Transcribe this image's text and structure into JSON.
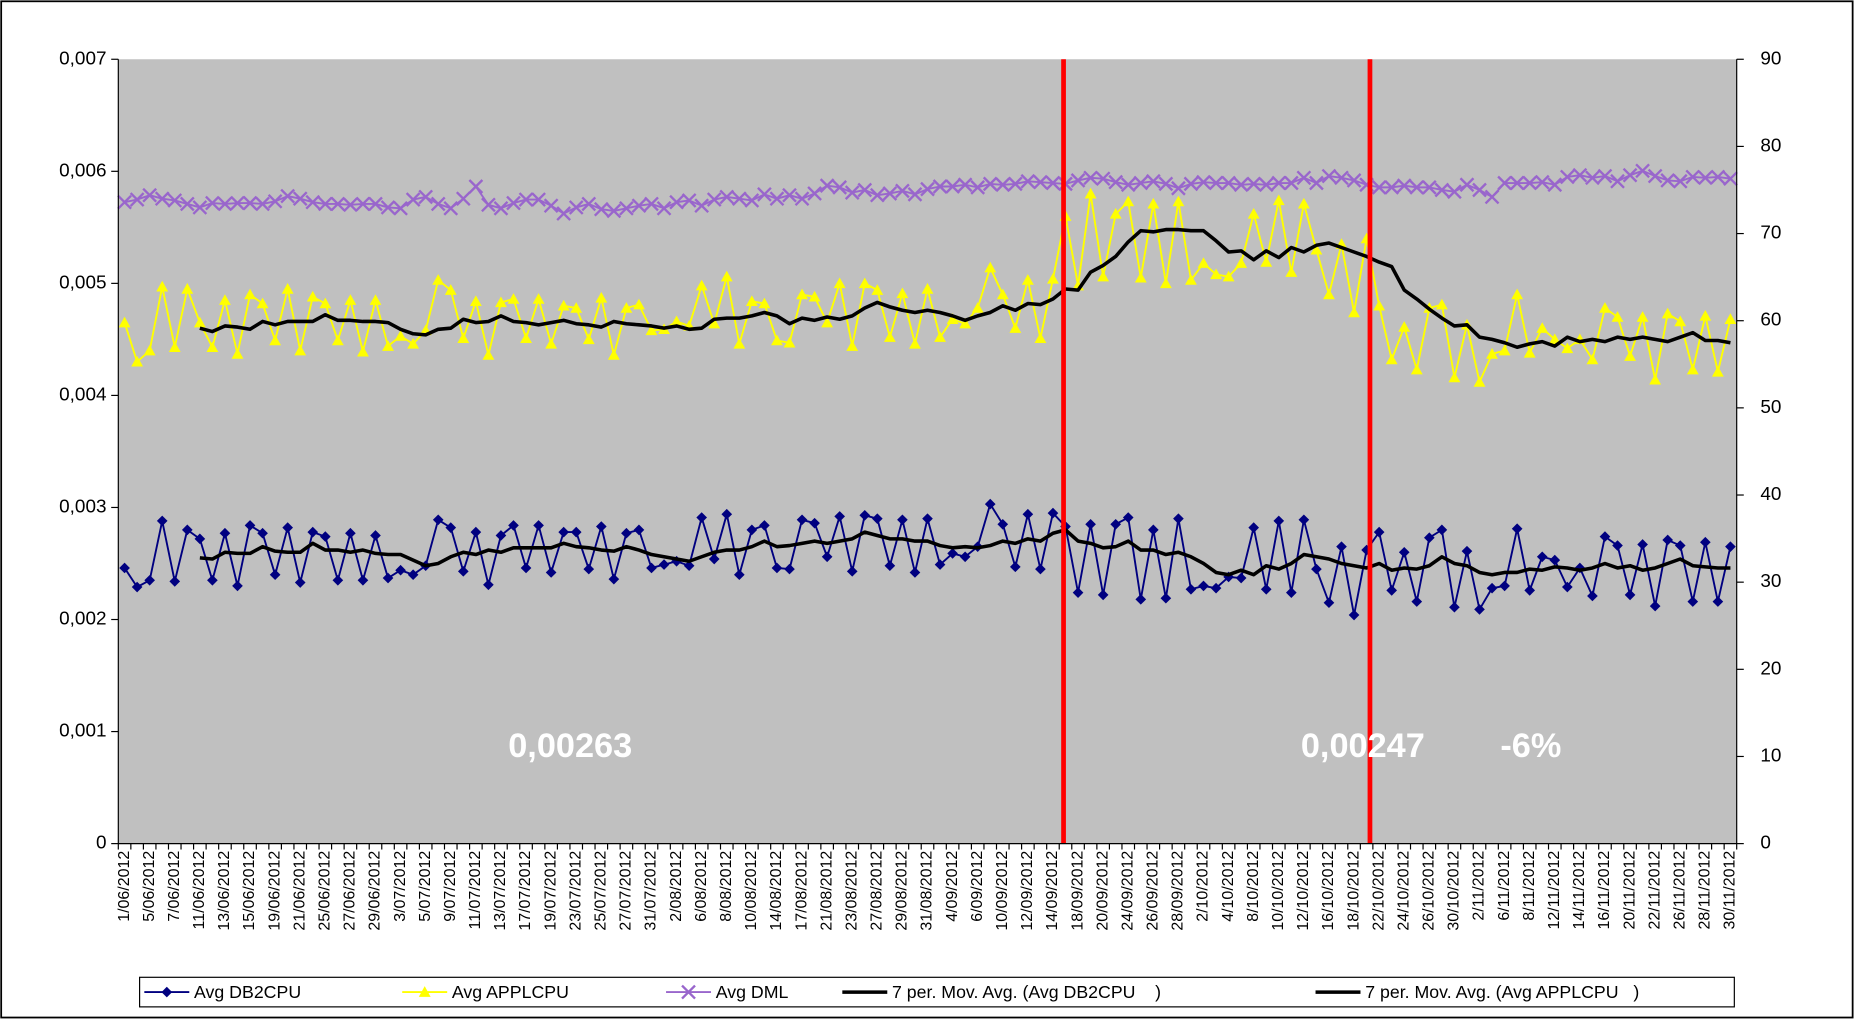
{
  "chart_data": {
    "type": "line",
    "categories": [
      "1/06/2012",
      null,
      "5/06/2012",
      null,
      "7/06/2012",
      null,
      "11/06/2012",
      null,
      "13/06/2012",
      null,
      "15/06/2012",
      null,
      "19/06/2012",
      null,
      "21/06/2012",
      null,
      "25/06/2012",
      null,
      "27/06/2012",
      null,
      "29/06/2012",
      null,
      "3/07/2012",
      null,
      "5/07/2012",
      null,
      "9/07/2012",
      null,
      "11/07/2012",
      null,
      "13/07/2012",
      null,
      "17/07/2012",
      null,
      "19/07/2012",
      null,
      "23/07/2012",
      null,
      "25/07/2012",
      null,
      "27/07/2012",
      null,
      "31/07/2012",
      null,
      "2/08/2012",
      null,
      "6/08/2012",
      null,
      "8/08/2012",
      null,
      "10/08/2012",
      null,
      "14/08/2012",
      null,
      "17/08/2012",
      null,
      "21/08/2012",
      null,
      "23/08/2012",
      null,
      "27/08/2012",
      null,
      "29/08/2012",
      null,
      "31/08/2012",
      null,
      "4/09/2012",
      null,
      "6/09/2012",
      null,
      "10/09/2012",
      null,
      "12/09/2012",
      null,
      "14/09/2012",
      null,
      "18/09/2012",
      null,
      "20/09/2012",
      null,
      "24/09/2012",
      null,
      "26/09/2012",
      null,
      "28/09/2012",
      null,
      "2/10/2012",
      null,
      "4/10/2012",
      null,
      "8/10/2012",
      null,
      "10/10/2012",
      null,
      "12/10/2012",
      null,
      "16/10/2012",
      null,
      "18/10/2012",
      null,
      "22/10/2012",
      null,
      "24/10/2012",
      null,
      "26/10/2012",
      null,
      "30/10/2012",
      null,
      "2/11/2012",
      null,
      "6/11/2012",
      null,
      "8/11/2012",
      null,
      "12/11/2012",
      null,
      "14/11/2012",
      null,
      "16/11/2012",
      null,
      "20/11/2012",
      null,
      "22/11/2012",
      null,
      "26/11/2012",
      null,
      "28/11/2012",
      null,
      "30/11/2012"
    ],
    "series": [
      {
        "name": "Avg DB2CPU",
        "color": "#000080",
        "marker": "diamond",
        "values": [
          0.00246,
          0.00229,
          0.00235,
          0.00288,
          0.00234,
          0.0028,
          0.00272,
          0.00235,
          0.00277,
          0.0023,
          0.00284,
          0.00277,
          0.0024,
          0.00282,
          0.00233,
          0.00278,
          0.00274,
          0.00235,
          0.00277,
          0.00235,
          0.00275,
          0.00237,
          0.00244,
          0.0024,
          0.00248,
          0.00289,
          0.00282,
          0.00243,
          0.00278,
          0.00231,
          0.00275,
          0.00284,
          0.00246,
          0.00284,
          0.00242,
          0.00278,
          0.00278,
          0.00245,
          0.00283,
          0.00236,
          0.00277,
          0.0028,
          0.00246,
          0.00249,
          0.00252,
          0.00248,
          0.00291,
          0.00254,
          0.00294,
          0.0024,
          0.0028,
          0.00284,
          0.00246,
          0.00245,
          0.00289,
          0.00286,
          0.00256,
          0.00292,
          0.00243,
          0.00293,
          0.0029,
          0.00248,
          0.00289,
          0.00242,
          0.0029,
          0.00249,
          0.00259,
          0.00256,
          0.00265,
          0.00303,
          0.00285,
          0.00247,
          0.00294,
          0.00245,
          0.00295,
          0.00283,
          0.00224,
          0.00285,
          0.00222,
          0.00285,
          0.00291,
          0.00218,
          0.0028,
          0.00219,
          0.0029,
          0.00227,
          0.0023,
          0.00228,
          0.00238,
          0.00237,
          0.00282,
          0.00227,
          0.00288,
          0.00224,
          0.00289,
          0.00245,
          0.00215,
          0.00265,
          0.00204,
          0.00262,
          0.00278,
          0.00226,
          0.0026,
          0.00216,
          0.00273,
          0.0028,
          0.00211,
          0.00261,
          0.00209,
          0.00228,
          0.0023,
          0.00281,
          0.00226,
          0.00256,
          0.00253,
          0.00229,
          0.00246,
          0.00221,
          0.00274,
          0.00266,
          0.00222,
          0.00267,
          0.00212,
          0.00271,
          0.00266,
          0.00216,
          0.00269,
          0.00216,
          0.00265
        ]
      },
      {
        "name": "Avg APPLCPU",
        "color": "#ffff00",
        "marker": "triangle",
        "values": [
          0.00465,
          0.0043,
          0.0044,
          0.00497,
          0.00443,
          0.00495,
          0.00465,
          0.00443,
          0.00485,
          0.00437,
          0.0049,
          0.00482,
          0.00449,
          0.00495,
          0.0044,
          0.00488,
          0.00482,
          0.00449,
          0.00485,
          0.00439,
          0.00485,
          0.00444,
          0.00453,
          0.00446,
          0.00458,
          0.00503,
          0.00494,
          0.00451,
          0.00484,
          0.00436,
          0.00483,
          0.00486,
          0.00451,
          0.00486,
          0.00446,
          0.0048,
          0.00478,
          0.0045,
          0.00487,
          0.00436,
          0.00478,
          0.00481,
          0.00458,
          0.00459,
          0.00466,
          0.00462,
          0.00498,
          0.00464,
          0.00506,
          0.00446,
          0.00484,
          0.00482,
          0.00449,
          0.00447,
          0.0049,
          0.00488,
          0.00465,
          0.005,
          0.00444,
          0.005,
          0.00494,
          0.00452,
          0.00491,
          0.00446,
          0.00495,
          0.00452,
          0.00468,
          0.00464,
          0.00478,
          0.00514,
          0.0049,
          0.0046,
          0.00503,
          0.00451,
          0.00504,
          0.0056,
          0.00498,
          0.0058,
          0.00506,
          0.00562,
          0.00573,
          0.00505,
          0.00571,
          0.005,
          0.00573,
          0.00503,
          0.00518,
          0.00508,
          0.00506,
          0.00518,
          0.00562,
          0.00519,
          0.00574,
          0.0051,
          0.00571,
          0.0053,
          0.0049,
          0.00535,
          0.00474,
          0.0054,
          0.0048,
          0.00432,
          0.00461,
          0.00423,
          0.00478,
          0.00481,
          0.00416,
          0.00463,
          0.00412,
          0.00437,
          0.0044,
          0.0049,
          0.00438,
          0.0046,
          0.0045,
          0.00442,
          0.0045,
          0.00432,
          0.00478,
          0.0047,
          0.00435,
          0.0047,
          0.00414,
          0.00473,
          0.00466,
          0.00423,
          0.00471,
          0.00421,
          0.00468
        ]
      },
      {
        "name": "Avg DML",
        "color": "#9966cc",
        "marker": "x",
        "axis": "y2",
        "values": [
          73.6,
          73.9,
          74.4,
          74.0,
          73.8,
          73.4,
          73.0,
          73.5,
          73.4,
          73.5,
          73.5,
          73.4,
          73.7,
          74.3,
          74.0,
          73.6,
          73.4,
          73.4,
          73.3,
          73.4,
          73.4,
          73.0,
          72.9,
          73.9,
          74.2,
          73.4,
          72.9,
          74.0,
          75.4,
          73.3,
          72.9,
          73.5,
          73.9,
          73.9,
          73.2,
          72.3,
          73.0,
          73.4,
          72.8,
          72.6,
          72.9,
          73.2,
          73.4,
          72.9,
          73.6,
          73.8,
          73.2,
          73.9,
          74.2,
          74.0,
          73.8,
          74.5,
          74.0,
          74.4,
          74.0,
          74.6,
          75.5,
          75.3,
          74.7,
          75.0,
          74.4,
          74.6,
          74.9,
          74.5,
          75.1,
          75.4,
          75.4,
          75.6,
          75.3,
          75.7,
          75.6,
          75.7,
          76.0,
          75.9,
          75.8,
          75.7,
          76.1,
          76.4,
          76.3,
          75.9,
          75.6,
          75.8,
          76.0,
          75.7,
          75.2,
          75.7,
          75.9,
          75.8,
          75.8,
          75.6,
          75.7,
          75.6,
          75.8,
          75.8,
          76.4,
          75.8,
          76.6,
          76.4,
          76.1,
          75.6,
          75.3,
          75.3,
          75.5,
          75.3,
          75.3,
          75.0,
          74.8,
          75.6,
          75.0,
          74.2,
          75.8,
          75.8,
          75.8,
          75.9,
          75.6,
          76.5,
          76.7,
          76.4,
          76.6,
          76.0,
          76.7,
          77.2,
          76.6,
          76.1,
          76.0,
          76.5,
          76.4,
          76.5,
          76.3
        ]
      },
      {
        "name": "7 per. Mov. Avg. (Avg DB2CPU    )",
        "color": "#000000",
        "marker": "none",
        "values": [
          null,
          null,
          null,
          null,
          null,
          null,
          0.00255,
          0.00254,
          0.0026,
          0.00259,
          0.00259,
          0.00265,
          0.00261,
          0.0026,
          0.0026,
          0.00268,
          0.00262,
          0.00262,
          0.0026,
          0.00262,
          0.00259,
          0.00258,
          0.00258,
          0.00253,
          0.00248,
          0.0025,
          0.00256,
          0.0026,
          0.00258,
          0.00262,
          0.0026,
          0.00264,
          0.00264,
          0.00264,
          0.00264,
          0.00268,
          0.00265,
          0.00264,
          0.00262,
          0.00261,
          0.00265,
          0.00262,
          0.00258,
          0.00256,
          0.00254,
          0.00252,
          0.00256,
          0.0026,
          0.00262,
          0.00262,
          0.00265,
          0.0027,
          0.00265,
          0.00266,
          0.00268,
          0.0027,
          0.00268,
          0.0027,
          0.00272,
          0.00278,
          0.00275,
          0.00272,
          0.00272,
          0.0027,
          0.0027,
          0.00266,
          0.00264,
          0.00265,
          0.00264,
          0.00266,
          0.0027,
          0.00268,
          0.00272,
          0.0027,
          0.00277,
          0.0028,
          0.0027,
          0.00268,
          0.00264,
          0.00265,
          0.0027,
          0.00262,
          0.00262,
          0.00258,
          0.0026,
          0.00256,
          0.0025,
          0.00242,
          0.0024,
          0.00244,
          0.0024,
          0.00248,
          0.00245,
          0.0025,
          0.00258,
          0.00256,
          0.00254,
          0.0025,
          0.00248,
          0.00246,
          0.0025,
          0.00244,
          0.00246,
          0.00245,
          0.00248,
          0.00256,
          0.0025,
          0.00248,
          0.00242,
          0.0024,
          0.00242,
          0.00242,
          0.00245,
          0.00244,
          0.00247,
          0.00246,
          0.00244,
          0.00246,
          0.0025,
          0.00246,
          0.00248,
          0.00244,
          0.00246,
          0.0025,
          0.00254,
          0.00248,
          0.00247,
          0.00246,
          0.00246
        ]
      },
      {
        "name": "7 per. Mov. Avg. (Avg APPLCPU   )",
        "color": "#000000",
        "marker": "none",
        "values": [
          null,
          null,
          null,
          null,
          null,
          null,
          0.0046,
          0.00457,
          0.00462,
          0.00461,
          0.00459,
          0.00466,
          0.00463,
          0.00466,
          0.00466,
          0.00466,
          0.00472,
          0.00467,
          0.00467,
          0.00466,
          0.00466,
          0.00465,
          0.00459,
          0.00455,
          0.00454,
          0.00459,
          0.0046,
          0.00468,
          0.00465,
          0.00466,
          0.00471,
          0.00466,
          0.00465,
          0.00463,
          0.00465,
          0.00467,
          0.00464,
          0.00463,
          0.00461,
          0.00466,
          0.00464,
          0.00463,
          0.00462,
          0.0046,
          0.00462,
          0.00459,
          0.0046,
          0.00468,
          0.00469,
          0.00469,
          0.00471,
          0.00474,
          0.00471,
          0.00464,
          0.00469,
          0.00467,
          0.0047,
          0.00468,
          0.00471,
          0.00478,
          0.00483,
          0.00479,
          0.00476,
          0.00474,
          0.00476,
          0.00474,
          0.00471,
          0.00467,
          0.00471,
          0.00474,
          0.0048,
          0.00476,
          0.00482,
          0.00481,
          0.00486,
          0.00495,
          0.00494,
          0.0051,
          0.00516,
          0.00524,
          0.00537,
          0.00547,
          0.00546,
          0.00548,
          0.00548,
          0.00547,
          0.00547,
          0.00538,
          0.00528,
          0.00529,
          0.00521,
          0.00529,
          0.00523,
          0.00532,
          0.00528,
          0.00534,
          0.00536,
          0.00532,
          0.00528,
          0.00524,
          0.00519,
          0.00515,
          0.00494,
          0.00486,
          0.00477,
          0.00469,
          0.00462,
          0.00463,
          0.00452,
          0.0045,
          0.00447,
          0.00443,
          0.00446,
          0.00448,
          0.00444,
          0.00452,
          0.00448,
          0.0045,
          0.00448,
          0.00452,
          0.0045,
          0.00452,
          0.0045,
          0.00448,
          0.00452,
          0.00456,
          0.00449,
          0.00449,
          0.00447
        ]
      }
    ],
    "ylim": [
      0,
      0.007
    ],
    "yticks": [
      0,
      {
        "value": 0.001,
        "label": "0,001"
      },
      {
        "value": 0.002,
        "label": "0,002"
      },
      {
        "value": 0.003,
        "label": "0,003"
      },
      {
        "value": 0.004,
        "label": "0,004"
      },
      {
        "value": 0.005,
        "label": "0,005"
      },
      {
        "value": 0.006,
        "label": "0,006"
      },
      {
        "value": 0.007,
        "label": "0,007"
      }
    ],
    "y2lim": [
      0,
      90
    ],
    "y2ticks": [
      0,
      10,
      20,
      30,
      40,
      50,
      60,
      70,
      80,
      90
    ],
    "annotations": [
      "0,00263",
      "0,00247",
      "-6%"
    ],
    "legend": "bottom",
    "grid": false
  }
}
